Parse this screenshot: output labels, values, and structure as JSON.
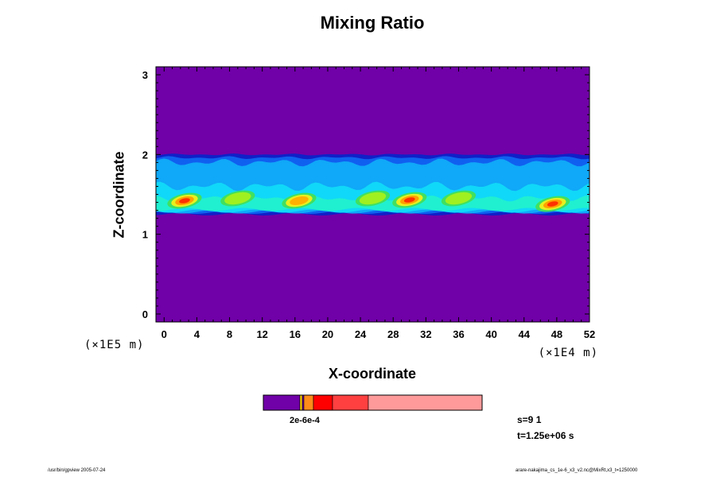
{
  "chart_data": {
    "type": "heatmap",
    "title": "Mixing Ratio",
    "xlabel": "X-coordinate",
    "ylabel": "Z-coordinate",
    "x_unit": "(×1E4 m)",
    "y_unit": "(×1E5 m)",
    "xlim": [
      -1,
      52
    ],
    "ylim": [
      -0.1,
      3.1
    ],
    "x_ticks": [
      0,
      4,
      8,
      12,
      16,
      20,
      24,
      28,
      32,
      36,
      40,
      44,
      48,
      52
    ],
    "y_ticks": [
      0,
      1,
      2,
      3
    ],
    "background_value_color": "#7000a8",
    "band": {
      "z_bottom": 1.27,
      "z_top": 2.0,
      "description_levels": [
        "blue",
        "cyan",
        "green",
        "yellow",
        "red"
      ]
    },
    "hotspots": [
      {
        "x": 2.5,
        "z": 1.42,
        "strength": "red"
      },
      {
        "x": 9.0,
        "z": 1.45,
        "strength": "green"
      },
      {
        "x": 16.5,
        "z": 1.42,
        "strength": "yellow"
      },
      {
        "x": 25.5,
        "z": 1.45,
        "strength": "green"
      },
      {
        "x": 30.0,
        "z": 1.43,
        "strength": "red"
      },
      {
        "x": 36.0,
        "z": 1.45,
        "strength": "green"
      },
      {
        "x": 47.5,
        "z": 1.38,
        "strength": "red"
      }
    ],
    "colorbar": {
      "label": "2e-6e-4",
      "segments": [
        "#7000a8",
        "#ffd000",
        "#7000a8",
        "#ff8c1a",
        "#ff0000",
        "#ff4040",
        "#ff9a9a"
      ]
    },
    "annotations": {
      "step": "s=9 1",
      "time": "t=1.25e+06 s"
    }
  },
  "footer": {
    "left": "/usr/bin/gpview 2005-07-24",
    "right": "arare-nakajima_cs_1e-6_x3_v2.nc@MixRt,x3_t=1250000"
  }
}
